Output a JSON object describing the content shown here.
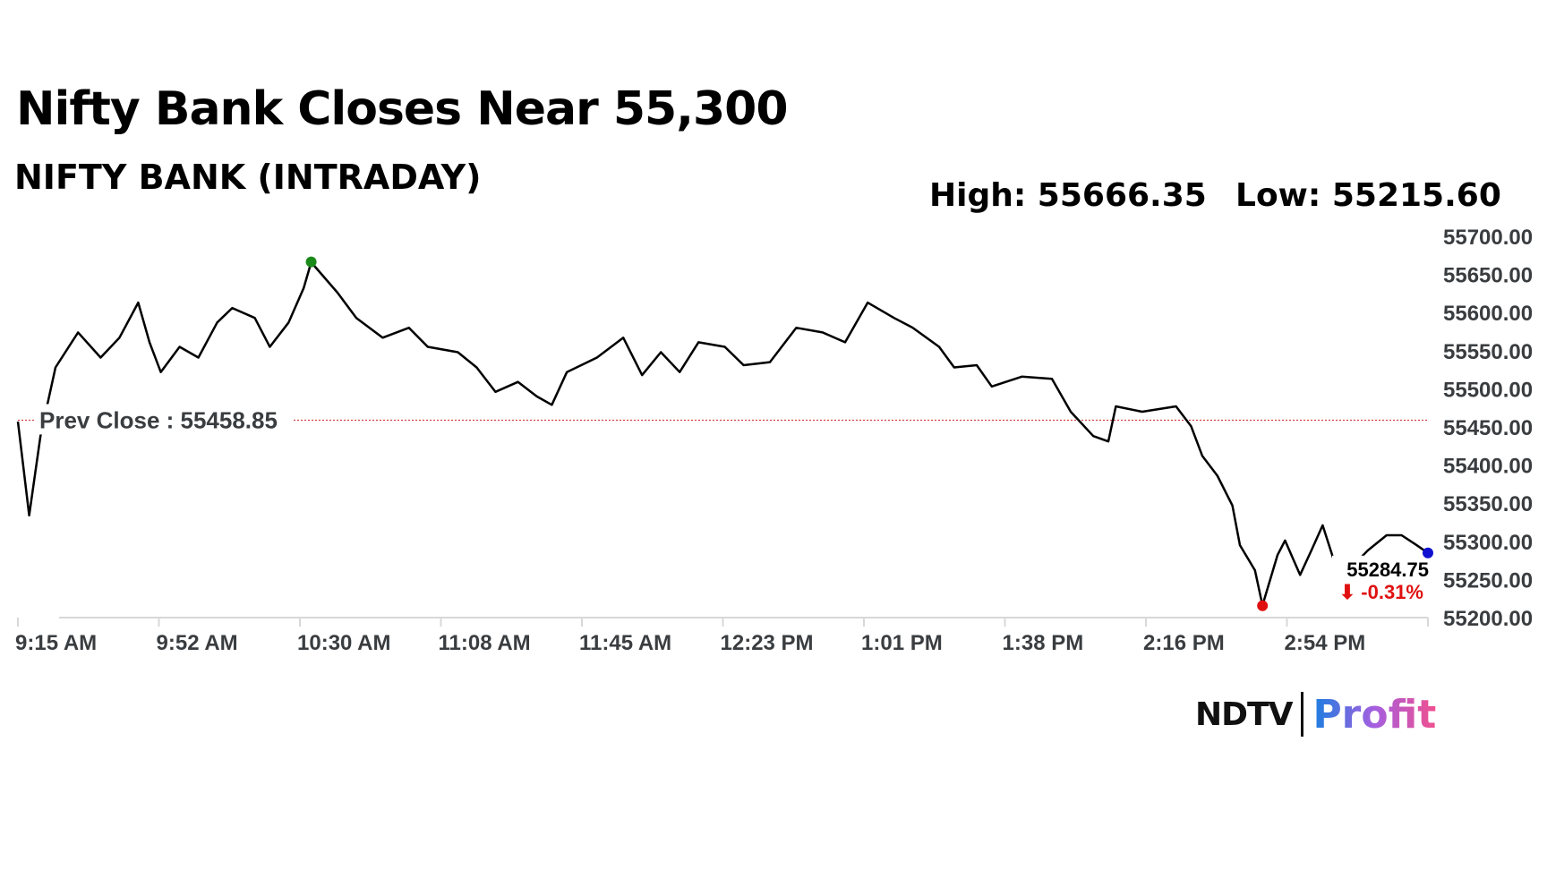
{
  "header": {
    "title": "Nifty Bank Closes Near 55,300",
    "subtitle": "NIFTY BANK (INTRADAY)",
    "high_label": "High: 55666.35",
    "low_label": "Low: 55215.60"
  },
  "logo": {
    "ndtv": "NDTV",
    "profit": "Profit"
  },
  "chart_data": {
    "type": "line",
    "title": "NIFTY BANK (INTRADAY)",
    "xlabel": "",
    "ylabel": "",
    "x_unit": "minutes since 9:15 AM",
    "xlim": [
      0,
      375
    ],
    "ylim": [
      55200,
      55700
    ],
    "grid": false,
    "y_ticks": [
      "55200.00",
      "55250.00",
      "55300.00",
      "55350.00",
      "55400.00",
      "55450.00",
      "55500.00",
      "55550.00",
      "55600.00",
      "55650.00",
      "55700.00"
    ],
    "x_ticks": [
      "9:15 AM",
      "9:52 AM",
      "10:30 AM",
      "11:08 AM",
      "11:45 AM",
      "12:23 PM",
      "1:01 PM",
      "1:38 PM",
      "2:16 PM",
      "2:54 PM"
    ],
    "prev_close": 55458.85,
    "prev_close_label": "Prev Close : 55458.85",
    "high": {
      "x": 78,
      "y": 55666.35
    },
    "low": {
      "x": 331,
      "y": 55215.6
    },
    "last": {
      "x": 375,
      "y": 55284.75,
      "label": "55284.75",
      "change_label": "⬇ -0.31%"
    },
    "colors": {
      "line": "#000000",
      "prev_close": "#d43a3a",
      "high": "#1a8a1a",
      "low": "#e01010",
      "last": "#1010d0",
      "change": "#e01010"
    },
    "series": [
      {
        "name": "NIFTY BANK",
        "x": [
          0,
          3,
          6,
          10,
          16,
          22,
          27,
          32,
          35,
          38,
          43,
          48,
          53,
          57,
          63,
          67,
          72,
          76,
          78,
          85,
          90,
          97,
          104,
          109,
          117,
          122,
          127,
          133,
          138,
          142,
          146,
          154,
          161,
          166,
          171,
          176,
          181,
          188,
          193,
          200,
          207,
          214,
          220,
          226,
          233,
          238,
          245,
          249,
          255,
          259,
          267,
          275,
          280,
          286,
          290,
          292,
          299,
          308,
          312,
          315,
          319,
          323,
          325,
          329,
          331,
          335,
          337,
          341,
          344,
          347,
          350,
          353,
          359,
          364,
          368,
          372,
          375
        ],
        "y": [
          55457,
          55334,
          55438,
          55528,
          55574,
          55541,
          55567,
          55613,
          55561,
          55522,
          55555,
          55541,
          55587,
          55606,
          55593,
          55555,
          55587,
          55632,
          55666,
          55626,
          55593,
          55567,
          55580,
          55555,
          55548,
          55528,
          55496,
          55509,
          55490,
          55479,
          55522,
          55541,
          55567,
          55518,
          55548,
          55522,
          55561,
          55555,
          55531,
          55535,
          55580,
          55574,
          55561,
          55613,
          55593,
          55580,
          55555,
          55528,
          55531,
          55503,
          55516,
          55513,
          55470,
          55438,
          55431,
          55477,
          55470,
          55477,
          55451,
          55412,
          55386,
          55347,
          55295,
          55262,
          55216,
          55282,
          55301,
          55256,
          55288,
          55321,
          55275,
          55258,
          55288,
          55308,
          55308,
          55295,
          55284.75
        ]
      }
    ]
  }
}
